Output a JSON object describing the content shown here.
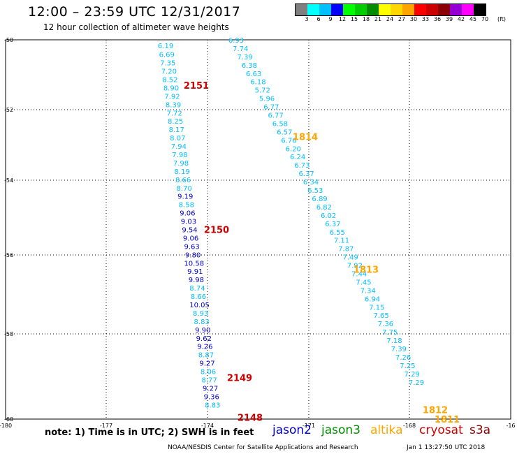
{
  "title": "12:00 – 23:59 UTC 12/31/2017",
  "subtitle": "12 hour collection of altimeter wave heights",
  "colorbar": {
    "colors": [
      "#7f7f7f",
      "#00ffff",
      "#00bfff",
      "#0000ff",
      "#00ff00",
      "#00cd00",
      "#008b00",
      "#ffff00",
      "#ffd700",
      "#ffa500",
      "#ff0000",
      "#cd0000",
      "#8b0000",
      "#9400d3",
      "#ff00ff",
      "#000000"
    ],
    "labels": [
      "3",
      "6",
      "9",
      "12",
      "15",
      "18",
      "21",
      "24",
      "27",
      "30",
      "33",
      "36",
      "39",
      "42",
      "45",
      "70"
    ],
    "unit": "(ft)"
  },
  "axes": {
    "lat_labels": [
      "-50",
      "-52",
      "-54",
      "-56",
      "-58",
      "-60"
    ],
    "lon_labels": [
      "-180",
      "-177",
      "-174",
      "-171",
      "-168",
      "-16"
    ]
  },
  "note": "note:  1) Time is in UTC;  2) SWH is in feet",
  "satellites": [
    {
      "name": "jason2",
      "color": "#0000cd"
    },
    {
      "name": "jason3",
      "color": "#008b00"
    },
    {
      "name": "altika",
      "color": "#ffa500"
    },
    {
      "name": "cryosat",
      "color": "#cd0000"
    },
    {
      "name": "s3a",
      "color": "#8b0000"
    }
  ],
  "credit": "NOAA/NESDIS Center for Satellite Applications and Research",
  "timestamp": "Jan  1 13:27:50 UTC 2018",
  "tracks": [
    {
      "name": "cryosat-track",
      "labels": [
        {
          "text": "2151",
          "lat": -51.2
        },
        {
          "text": "2150",
          "lat": -55.0
        },
        {
          "text": "2149",
          "lat": -58.9
        },
        {
          "text": "2148",
          "lat": -59.95
        }
      ],
      "points": [
        {
          "v": "6.19",
          "lat": -50.15
        },
        {
          "v": "6.69",
          "lat": -50.38
        },
        {
          "v": "7.35",
          "lat": -50.6
        },
        {
          "v": "7.20",
          "lat": -50.82
        },
        {
          "v": "8.52",
          "lat": -51.04
        },
        {
          "v": "8.90",
          "lat": -51.26
        },
        {
          "v": "7.92",
          "lat": -51.48
        },
        {
          "v": "8.39",
          "lat": -51.7
        },
        {
          "v": "7.72",
          "lat": -51.92
        },
        {
          "v": "8.25",
          "lat": -52.14
        },
        {
          "v": "8.17",
          "lat": -52.36
        },
        {
          "v": "8.07",
          "lat": -52.58
        },
        {
          "v": "7.94",
          "lat": -52.8
        },
        {
          "v": "7.98",
          "lat": -53.02
        },
        {
          "v": "7.98",
          "lat": -53.24
        },
        {
          "v": "8.19",
          "lat": -53.46
        },
        {
          "v": "8.66",
          "lat": -53.68
        },
        {
          "v": "8.70",
          "lat": -53.9
        },
        {
          "v": "9.19",
          "lat": -54.12
        },
        {
          "v": "8.58",
          "lat": -54.34
        },
        {
          "v": "9.06",
          "lat": -54.56
        },
        {
          "v": "9.03",
          "lat": -54.78
        },
        {
          "v": "9.54",
          "lat": -55.0
        },
        {
          "v": "9.06",
          "lat": -55.22
        },
        {
          "v": "9.63",
          "lat": -55.44
        },
        {
          "v": "9.80",
          "lat": -55.66
        },
        {
          "v": "10.58",
          "lat": -55.88
        },
        {
          "v": "9.91",
          "lat": -56.1
        },
        {
          "v": "9.98",
          "lat": -56.32
        },
        {
          "v": "8.74",
          "lat": -56.54
        },
        {
          "v": "8.66",
          "lat": -56.76
        },
        {
          "v": "10.05",
          "lat": -56.98
        },
        {
          "v": "8.93",
          "lat": -57.2
        },
        {
          "v": "8.83",
          "lat": -57.42
        },
        {
          "v": "9.90",
          "lat": -57.64
        },
        {
          "v": "9.62",
          "lat": -57.86
        },
        {
          "v": "9.26",
          "lat": -58.08
        },
        {
          "v": "8.87",
          "lat": -58.3
        },
        {
          "v": "9.27",
          "lat": -58.52
        },
        {
          "v": "8.06",
          "lat": -58.74
        },
        {
          "v": "8.77",
          "lat": -58.96
        },
        {
          "v": "9.27",
          "lat": -59.18
        },
        {
          "v": "9.36",
          "lat": -59.4
        },
        {
          "v": "8.83",
          "lat": -59.62
        }
      ]
    },
    {
      "name": "altika-track",
      "labels": [
        {
          "text": "1814",
          "lat": -52.55
        },
        {
          "text": "1813",
          "lat": -56.05
        },
        {
          "text": "1812",
          "lat": -59.75
        },
        {
          "text": "1811",
          "lat": -60.0
        }
      ],
      "points": [
        {
          "v": "6.93",
          "lat": -50.0
        },
        {
          "v": "7.74",
          "lat": -50.22
        },
        {
          "v": "7.39",
          "lat": -50.44
        },
        {
          "v": "6.38",
          "lat": -50.66
        },
        {
          "v": "6.63",
          "lat": -50.88
        },
        {
          "v": "6.18",
          "lat": -51.1
        },
        {
          "v": "5.72",
          "lat": -51.32
        },
        {
          "v": "5.96",
          "lat": -51.54
        },
        {
          "v": "6.77",
          "lat": -51.76
        },
        {
          "v": "6.77",
          "lat": -51.98
        },
        {
          "v": "6.58",
          "lat": -52.2
        },
        {
          "v": "6.57",
          "lat": -52.42
        },
        {
          "v": "6.76",
          "lat": -52.64
        },
        {
          "v": "6.20",
          "lat": -52.86
        },
        {
          "v": "6.24",
          "lat": -53.08
        },
        {
          "v": "6.73",
          "lat": -53.3
        },
        {
          "v": "6.37",
          "lat": -53.52
        },
        {
          "v": "6.34",
          "lat": -53.74
        },
        {
          "v": "6.53",
          "lat": -53.96
        },
        {
          "v": "6.89",
          "lat": -54.18
        },
        {
          "v": "6.82",
          "lat": -54.4
        },
        {
          "v": "6.02",
          "lat": -54.62
        },
        {
          "v": "6.37",
          "lat": -54.84
        },
        {
          "v": "6.55",
          "lat": -55.06
        },
        {
          "v": "7.11",
          "lat": -55.28
        },
        {
          "v": "7.87",
          "lat": -55.5
        },
        {
          "v": "7.49",
          "lat": -55.72
        },
        {
          "v": "7.92",
          "lat": -55.94
        },
        {
          "v": "7.44",
          "lat": -56.16
        },
        {
          "v": "7.45",
          "lat": -56.38
        },
        {
          "v": "7.34",
          "lat": -56.6
        },
        {
          "v": "6.94",
          "lat": -56.82
        },
        {
          "v": "7.15",
          "lat": -57.04
        },
        {
          "v": "7.65",
          "lat": -57.26
        },
        {
          "v": "7.36",
          "lat": -57.48
        },
        {
          "v": "7.75",
          "lat": -57.7
        },
        {
          "v": "7.18",
          "lat": -57.92
        },
        {
          "v": "7.39",
          "lat": -58.14
        },
        {
          "v": "7.26",
          "lat": -58.36
        },
        {
          "v": "7.25",
          "lat": -58.58
        },
        {
          "v": "7.29",
          "lat": -58.8
        },
        {
          "v": "7.29",
          "lat": -59.02
        }
      ]
    }
  ]
}
